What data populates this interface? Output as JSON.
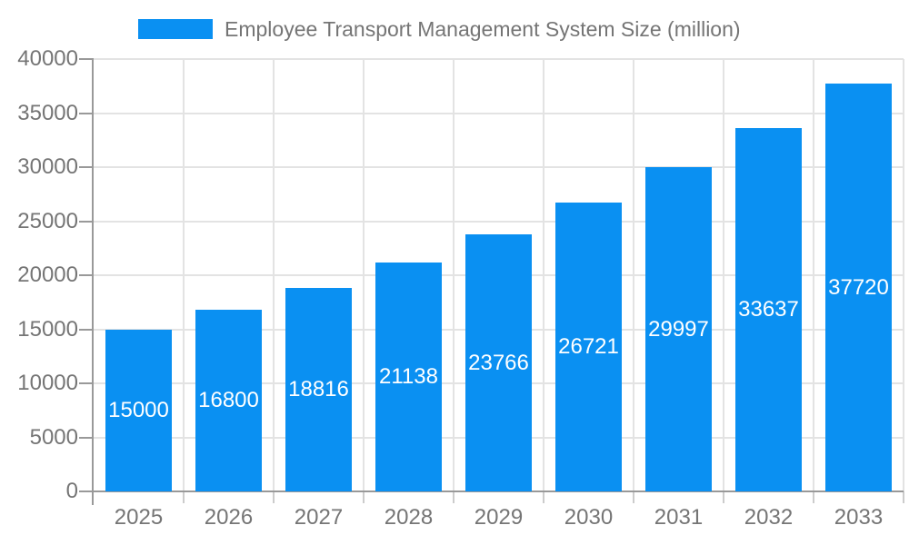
{
  "legend": {
    "label": "Employee Transport Management System Size (million)"
  },
  "chart_data": {
    "type": "bar",
    "title": "Employee Transport Management System Size (million)",
    "categories": [
      "2025",
      "2026",
      "2027",
      "2028",
      "2029",
      "2030",
      "2031",
      "2032",
      "2033"
    ],
    "values": [
      15000,
      16800,
      18816,
      21138,
      23766,
      26721,
      29997,
      33637,
      37720
    ],
    "series": [
      {
        "name": "Employee Transport Management System Size (million)",
        "values": [
          15000,
          16800,
          18816,
          21138,
          23766,
          26721,
          29997,
          33637,
          37720
        ]
      }
    ],
    "xlabel": "",
    "ylabel": "",
    "ylim": [
      0,
      40000
    ],
    "yticks": [
      0,
      5000,
      10000,
      15000,
      20000,
      25000,
      30000,
      35000,
      40000
    ],
    "grid": true,
    "legend_position": "top",
    "value_labels": "inside-center-white"
  },
  "colors": {
    "bar": "#0a90f2",
    "grid": "#e3e3e3",
    "axis": "#999999",
    "minor_tick": "#cccccc",
    "text": "#757575",
    "value_label": "#ffffff",
    "background": "#ffffff"
  }
}
